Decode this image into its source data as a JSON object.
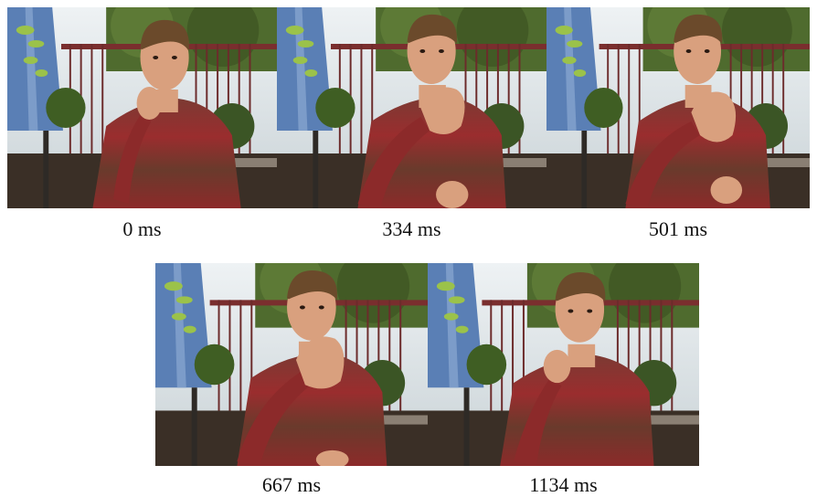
{
  "figure": {
    "frames": [
      {
        "caption": "0 ms",
        "pose": "hand-at-chin"
      },
      {
        "caption": "334 ms",
        "pose": "hand-raised-bent-fingers"
      },
      {
        "caption": "501 ms",
        "pose": "hand-raised-bent-fingers"
      },
      {
        "caption": "667 ms",
        "pose": "hand-raised-bent-fingers"
      },
      {
        "caption": "1134 ms",
        "pose": "hand-at-chin"
      }
    ]
  },
  "colors": {
    "sky": "#dfe6ea",
    "foliage": "#4f6b2e",
    "umbrella": "#5a7fb5",
    "sweater_red": "#8c2a2a",
    "sweater_brown": "#5e3327",
    "skin": "#d9a07e",
    "hair": "#6b4a2b"
  }
}
